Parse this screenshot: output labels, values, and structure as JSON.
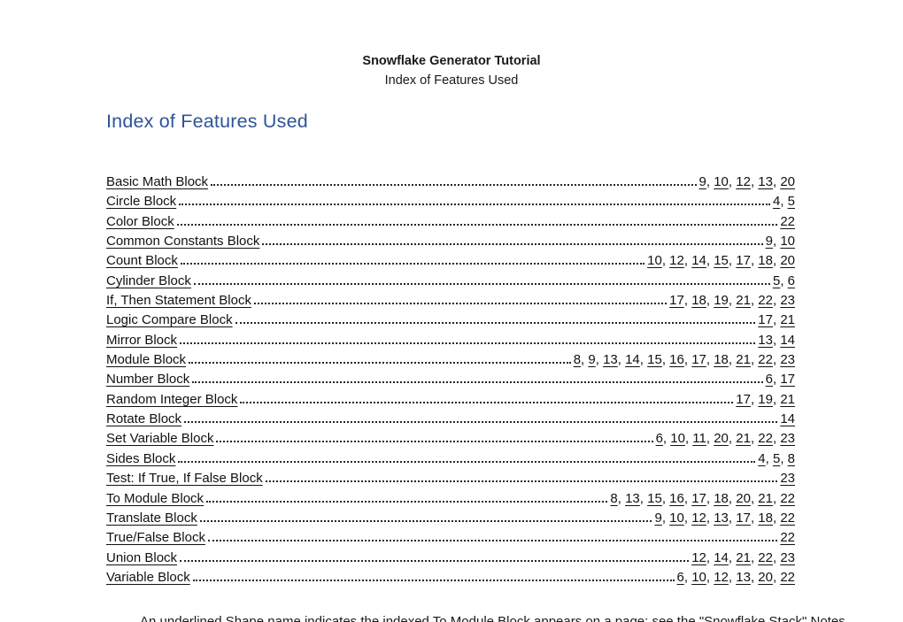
{
  "header": {
    "title": "Snowflake Generator Tutorial",
    "subtitle": "Index of Features Used"
  },
  "heading": "Index of Features Used",
  "toc": {
    "entries": [
      {
        "label": "Basic Math Block",
        "pages": [
          9,
          10,
          12,
          13,
          20
        ]
      },
      {
        "label": "Circle Block",
        "pages": [
          4,
          5
        ]
      },
      {
        "label": "Color Block",
        "pages": [
          22
        ]
      },
      {
        "label": "Common Constants Block",
        "pages": [
          9,
          10
        ]
      },
      {
        "label": "Count Block",
        "pages": [
          10,
          12,
          14,
          15,
          17,
          18,
          20
        ]
      },
      {
        "label": "Cylinder Block",
        "pages": [
          5,
          6
        ]
      },
      {
        "label": "If, Then Statement Block",
        "pages": [
          17,
          18,
          19,
          21,
          22,
          23
        ]
      },
      {
        "label": "Logic Compare Block",
        "pages": [
          17,
          21
        ]
      },
      {
        "label": "Mirror Block",
        "pages": [
          13,
          14
        ]
      },
      {
        "label": "Module Block",
        "pages": [
          8,
          9,
          13,
          14,
          15,
          16,
          17,
          18,
          21,
          22,
          23
        ]
      },
      {
        "label": "Number Block",
        "pages": [
          6,
          17
        ]
      },
      {
        "label": "Random Integer Block",
        "pages": [
          17,
          19,
          21
        ]
      },
      {
        "label": "Rotate Block",
        "pages": [
          14
        ]
      },
      {
        "label": "Set Variable Block",
        "pages": [
          6,
          10,
          11,
          20,
          21,
          22,
          23
        ]
      },
      {
        "label": "Sides Block",
        "pages": [
          4,
          5,
          8
        ]
      },
      {
        "label": "Test: If True, If False Block",
        "pages": [
          23
        ]
      },
      {
        "label": "To Module Block",
        "pages": [
          8,
          13,
          15,
          16,
          17,
          18,
          20,
          21,
          22
        ]
      },
      {
        "label": "Translate Block",
        "pages": [
          9,
          10,
          12,
          13,
          17,
          18,
          22
        ]
      },
      {
        "label": "True/False Block",
        "pages": [
          22
        ]
      },
      {
        "label": "Union Block",
        "pages": [
          12,
          14,
          21,
          22,
          23
        ]
      },
      {
        "label": "Variable Block",
        "pages": [
          6,
          10,
          12,
          13,
          20,
          22
        ]
      }
    ]
  },
  "footnote_partial": "An underlined Shape name indicates the indexed To Module Block appears on a page; see the \"Snowflake Stack\" Notes.",
  "colors": {
    "heading_blue": "#2F5496",
    "body_text": "#111111",
    "background": "#FFFFFF"
  }
}
